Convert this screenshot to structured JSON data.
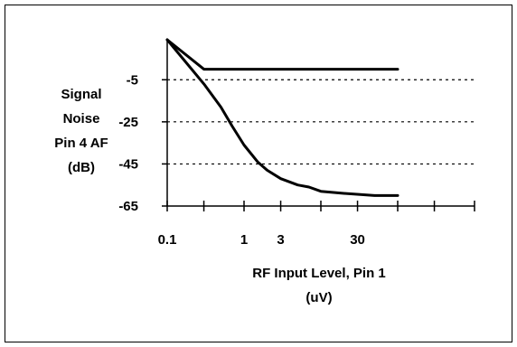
{
  "chart_data": {
    "type": "line",
    "title": "",
    "ylabel_lines": [
      "Signal",
      "Noise",
      "Pin 4 AF",
      "(dB)"
    ],
    "xlabel_lines": [
      "RF Input Level, Pin 1",
      "(uV)"
    ],
    "x_ticks": [
      0.1,
      0.3,
      1,
      3,
      10,
      30,
      100,
      300,
      1000
    ],
    "x_tick_labels": [
      "0.1",
      "1",
      "3",
      "30"
    ],
    "y_ticks": [
      -65,
      -45,
      -25,
      -5
    ],
    "y_tick_labels": [
      "-5",
      "-25",
      "-45",
      "-65"
    ],
    "ylim": [
      -65,
      14
    ],
    "x_log_scale": true,
    "grid": "horizontal dashed at labeled y ticks",
    "legend": "none",
    "series": [
      {
        "x": [
          0.1,
          0.3,
          1,
          3,
          10,
          30,
          100
        ],
        "y": [
          14,
          0,
          0,
          0,
          0,
          0,
          0
        ]
      },
      {
        "x": [
          0.1,
          0.3,
          0.5,
          0.7,
          1,
          1.5,
          2,
          3,
          5,
          7,
          10,
          20,
          50,
          100
        ],
        "y": [
          14,
          -7,
          -18,
          -27,
          -36,
          -44,
          -48,
          -52,
          -55,
          -56,
          -58,
          -59,
          -60,
          -60
        ]
      }
    ],
    "line_color": "#000000"
  }
}
